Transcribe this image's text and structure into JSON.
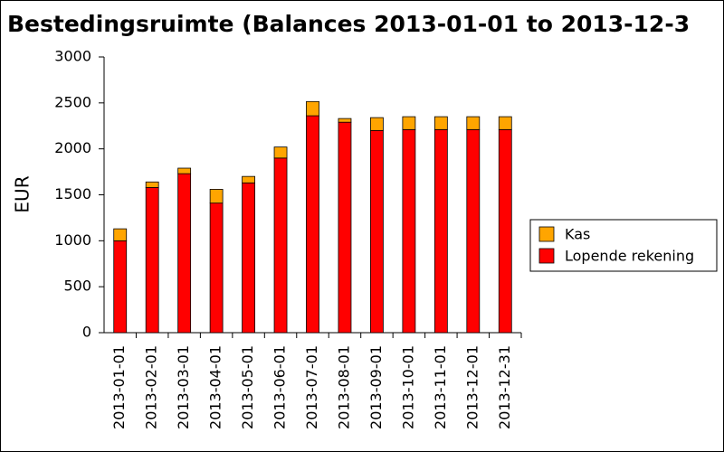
{
  "chart_data": {
    "type": "stacked-bar",
    "title": "Bestedingsruimte (Balances 2013-01-01 to 2013-12-3",
    "y_label": "EUR",
    "categories": [
      "2013-01-01",
      "2013-02-01",
      "2013-03-01",
      "2013-04-01",
      "2013-05-01",
      "2013-06-01",
      "2013-07-01",
      "2013-08-01",
      "2013-09-01",
      "2013-10-01",
      "2013-11-01",
      "2013-12-01",
      "2013-12-31"
    ],
    "series": [
      {
        "name": "Lopende rekening",
        "color": "#ff0000",
        "values": [
          1000,
          1580,
          1730,
          1410,
          1630,
          1900,
          2360,
          2290,
          2200,
          2210,
          2210,
          2210,
          2210
        ]
      },
      {
        "name": "Kas",
        "color": "#ffa500",
        "values": [
          130,
          60,
          60,
          150,
          70,
          120,
          155,
          40,
          140,
          140,
          140,
          140,
          140
        ]
      }
    ],
    "ylim": [
      0,
      3000
    ],
    "yticks": [
      0,
      500,
      1000,
      1500,
      2000,
      2500,
      3000
    ],
    "grid": false,
    "legend": "right"
  }
}
